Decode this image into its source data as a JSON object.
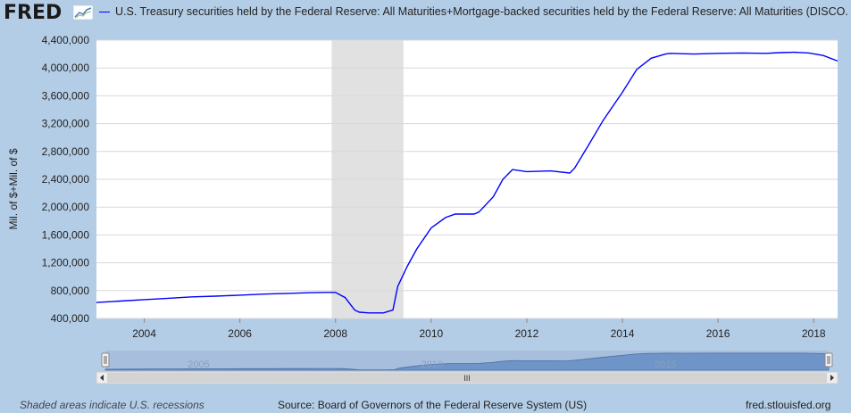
{
  "brand": {
    "logo_text": "FRED"
  },
  "legend": {
    "series_color": "#0000ff",
    "label": "U.S. Treasury securities held by the Federal Reserve: All Maturities+Mortgage-backed securities held by the Federal Reserve: All Maturities (DISCO..."
  },
  "chart_data": {
    "type": "line",
    "ylabel": "Mil. of $+Mil. of $",
    "xlabel": "",
    "ylim": [
      400000,
      4400000
    ],
    "xlim": [
      2003.0,
      2018.5
    ],
    "y_ticks": [
      "4,400,000",
      "4,000,000",
      "3,600,000",
      "3,200,000",
      "2,800,000",
      "2,400,000",
      "2,000,000",
      "1,600,000",
      "1,200,000",
      "800,000",
      "400,000"
    ],
    "x_ticks": [
      "2004",
      "2006",
      "2008",
      "2010",
      "2012",
      "2014",
      "2016",
      "2018"
    ],
    "recession": {
      "start": 2007.92,
      "end": 2009.42,
      "color": "#e1e1e1"
    },
    "series": [
      {
        "color": "#0000ff",
        "x": [
          2003.0,
          2003.5,
          2004.0,
          2004.5,
          2005.0,
          2005.5,
          2006.0,
          2006.5,
          2007.0,
          2007.5,
          2007.8,
          2008.0,
          2008.2,
          2008.4,
          2008.5,
          2008.7,
          2009.0,
          2009.2,
          2009.3,
          2009.5,
          2009.7,
          2010.0,
          2010.3,
          2010.5,
          2010.9,
          2011.0,
          2011.3,
          2011.5,
          2011.7,
          2012.0,
          2012.5,
          2012.9,
          2013.0,
          2013.3,
          2013.6,
          2014.0,
          2014.3,
          2014.6,
          2014.9,
          2015.0,
          2015.5,
          2016.0,
          2016.5,
          2017.0,
          2017.3,
          2017.6,
          2017.9,
          2018.2,
          2018.5
        ],
        "y": [
          630000,
          650000,
          670000,
          690000,
          710000,
          720000,
          735000,
          750000,
          760000,
          770000,
          775000,
          775000,
          700000,
          520000,
          490000,
          480000,
          480000,
          520000,
          860000,
          1150000,
          1400000,
          1700000,
          1850000,
          1900000,
          1900000,
          1930000,
          2150000,
          2400000,
          2540000,
          2510000,
          2520000,
          2490000,
          2560000,
          2900000,
          3250000,
          3650000,
          3980000,
          4140000,
          4200000,
          4210000,
          4200000,
          4210000,
          4215000,
          4210000,
          4220000,
          4225000,
          4215000,
          4180000,
          4100000
        ]
      }
    ]
  },
  "navigator": {
    "labels": [
      "2005",
      "2010",
      "2015"
    ],
    "scroll_glyph": "III"
  },
  "footer": {
    "left": "Shaded areas indicate U.S. recessions",
    "middle": "Source: Board of Governors of the Federal Reserve System (US)",
    "right": "fred.stlouisfed.org"
  }
}
